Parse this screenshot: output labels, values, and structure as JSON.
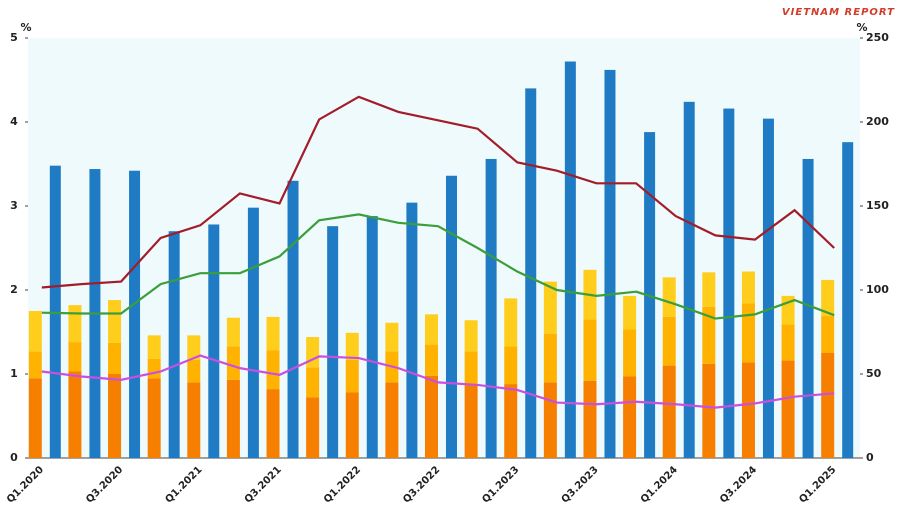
{
  "chart_data": {
    "type": "bar",
    "logo_text": "VIETNAM REPORT",
    "ylabel": "%",
    "y2label": "%",
    "categories": [
      "Q1.2020",
      null,
      "Q3.2020",
      null,
      "Q1.2021",
      null,
      "Q3.2021",
      null,
      "Q1.2022",
      null,
      "Q3.2022",
      null,
      "Q1.2023",
      null,
      "Q3.2023",
      null,
      "Q1.2024",
      null,
      "Q3.2024",
      null,
      "Q1.2025"
    ],
    "ylim": [
      0,
      5
    ],
    "yticks": [
      0,
      1,
      2,
      3,
      4,
      5
    ],
    "y2lim": [
      0,
      250
    ],
    "y2ticks": [
      0,
      50,
      100,
      150,
      200,
      250
    ],
    "series": [
      {
        "type": "bar",
        "stacked": true,
        "color": "#f77f00",
        "values": [
          0.95,
          1.03,
          1.0,
          0.95,
          0.9,
          0.93,
          0.82,
          0.72,
          0.78,
          0.9,
          0.98,
          0.88,
          0.88,
          0.9,
          0.92,
          0.97,
          1.1,
          1.12,
          1.14,
          1.16,
          1.25
        ]
      },
      {
        "type": "bar",
        "stacked": true,
        "color": "#ffb300",
        "values": [
          0.32,
          0.35,
          0.37,
          0.23,
          0.27,
          0.4,
          0.46,
          0.36,
          0.39,
          0.37,
          0.37,
          0.39,
          0.45,
          0.58,
          0.73,
          0.56,
          0.58,
          0.68,
          0.7,
          0.43,
          0.44
        ]
      },
      {
        "type": "bar",
        "stacked": true,
        "color": "#ffcd1c",
        "values": [
          0.48,
          0.44,
          0.51,
          0.28,
          0.29,
          0.34,
          0.4,
          0.36,
          0.32,
          0.34,
          0.36,
          0.37,
          0.57,
          0.62,
          0.59,
          0.4,
          0.47,
          0.41,
          0.38,
          0.34,
          0.43
        ]
      },
      {
        "type": "bar",
        "axis": "y2",
        "color": "#1f7cc4",
        "values": [
          174,
          172,
          171,
          135,
          139,
          149,
          165,
          138,
          144,
          152,
          168,
          178,
          220,
          236,
          231,
          194,
          212,
          208,
          202,
          178,
          188
        ]
      },
      {
        "type": "line",
        "color": "#a31c2a",
        "values": [
          2.03,
          2.07,
          2.1,
          2.62,
          2.77,
          3.15,
          3.03,
          4.03,
          4.3,
          4.12,
          4.02,
          3.92,
          3.52,
          3.42,
          3.27,
          3.27,
          2.88,
          2.65,
          2.6,
          2.95,
          2.5
        ]
      },
      {
        "type": "line",
        "color": "#3a9e3a",
        "values": [
          1.73,
          1.72,
          1.72,
          2.07,
          2.2,
          2.2,
          2.4,
          2.83,
          2.9,
          2.8,
          2.76,
          2.5,
          2.22,
          2.0,
          1.93,
          1.98,
          1.83,
          1.66,
          1.71,
          1.88,
          1.7
        ]
      },
      {
        "type": "line",
        "color": "#c94fe0",
        "values": [
          1.03,
          0.97,
          0.93,
          1.03,
          1.22,
          1.07,
          0.99,
          1.21,
          1.19,
          1.07,
          0.9,
          0.87,
          0.81,
          0.66,
          0.64,
          0.67,
          0.64,
          0.6,
          0.65,
          0.73,
          0.77
        ]
      }
    ]
  }
}
